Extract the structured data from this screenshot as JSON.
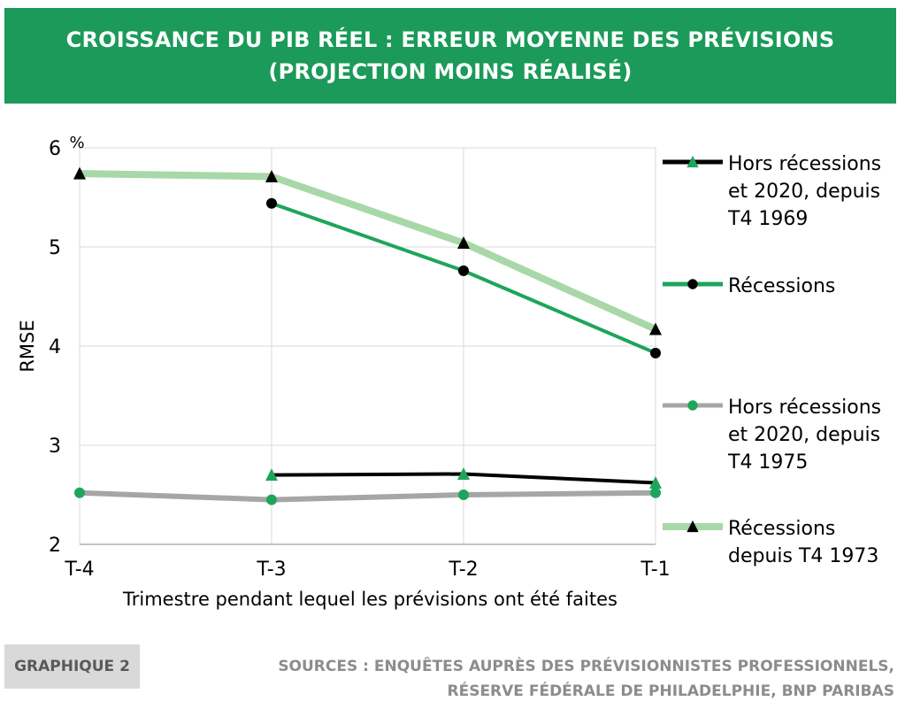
{
  "header": {
    "title_line1": "CROISSANCE DU PIB RÉEL : ERREUR MOYENNE DES PRÉVISIONS",
    "title_line2": "(PROJECTION MOINS RÉALISÉ)"
  },
  "footer": {
    "badge": "GRAPHIQUE 2",
    "sources_line1": "SOURCES : ENQUÊTES AUPRÈS DES PRÉVISIONNISTES PROFESSIONNELS,",
    "sources_line2": "RÉSERVE FÉDÉRALE DE PHILADELPHIE, BNP PARIBAS"
  },
  "chart_data": {
    "type": "line",
    "x": [
      "T-4",
      "T-3",
      "T-2",
      "T-1"
    ],
    "xlabel": "Trimestre pendant lequel les prévisions ont été faites",
    "ylabel": "RMSE",
    "yunit": "%",
    "ylim": [
      2,
      6
    ],
    "yticks": [
      2,
      3,
      4,
      5,
      6
    ],
    "grid": true,
    "legend_position": "right",
    "series": [
      {
        "name": "Hors récessions et 2020, depuis T4 1969",
        "name_lines": [
          "Hors récessions",
          "et 2020, depuis",
          "T4 1969"
        ],
        "values": [
          null,
          2.7,
          2.71,
          2.62
        ],
        "line_color": "#000000",
        "marker": "triangle",
        "marker_color": "#1ea55b"
      },
      {
        "name": "Récessions",
        "name_lines": [
          "Récessions"
        ],
        "values": [
          null,
          5.44,
          4.76,
          3.93
        ],
        "line_color": "#1ea55b",
        "marker": "circle",
        "marker_color": "#000000"
      },
      {
        "name": "Hors récessions et 2020, depuis T4 1975",
        "name_lines": [
          "Hors récessions",
          "et 2020, depuis",
          "T4 1975"
        ],
        "values": [
          2.52,
          2.45,
          2.5,
          2.52
        ],
        "line_color": "#a6a6a6",
        "marker": "circle",
        "marker_color": "#1ea55b"
      },
      {
        "name": "Récessions depuis T4 1973",
        "name_lines": [
          "Récessions",
          "depuis T4 1973"
        ],
        "values": [
          5.74,
          5.71,
          5.04,
          4.17
        ],
        "line_color": "#a8d8a8",
        "marker": "triangle",
        "marker_color": "#000000"
      }
    ]
  }
}
